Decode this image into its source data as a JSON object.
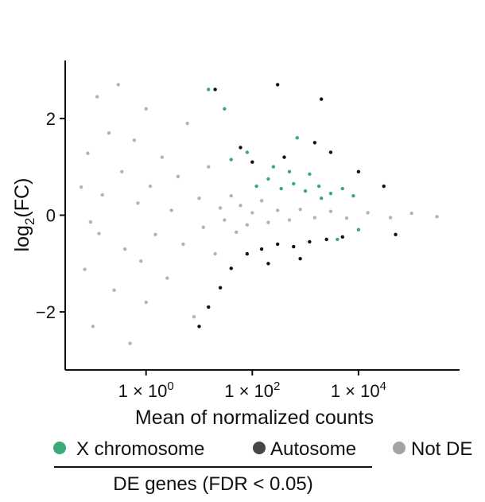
{
  "chart_data": {
    "type": "scatter",
    "subtype": "MA plot",
    "xlabel": "Mean of normalized counts",
    "ylabel": {
      "prefix": "log",
      "subscript": "2",
      "suffix": "(FC)"
    },
    "x_scale": "log10",
    "xlim": [
      0.03,
      800000
    ],
    "ylim": [
      -3.2,
      3.2
    ],
    "x_ticks": [
      {
        "value": 1,
        "label_base": "1 × 10",
        "label_exp": "0"
      },
      {
        "value": 100,
        "label_base": "1 × 10",
        "label_exp": "2"
      },
      {
        "value": 10000,
        "label_base": "1 × 10",
        "label_exp": "4"
      }
    ],
    "y_ticks": [
      {
        "value": 2,
        "label": "2"
      },
      {
        "value": 0,
        "label": "0"
      },
      {
        "value": -2,
        "label": "−2"
      }
    ],
    "clip_value": 3,
    "grid": false,
    "legend_position": "bottom",
    "legend": [
      {
        "label": "X chromosome",
        "color": "#3aaa78"
      },
      {
        "label": "Autosome",
        "color": "#474747"
      },
      {
        "label": "Not DE",
        "color": "#a3a3a3"
      }
    ],
    "legend_caption": "DE genes (FDR < 0.05)",
    "series": [
      {
        "name": "Not DE",
        "color": "#b3b3b3",
        "points": [
          [
            0.06,
            0.58
          ],
          [
            0.08,
            1.28
          ],
          [
            0.09,
            -0.14
          ],
          [
            0.07,
            -1.12
          ],
          [
            0.1,
            -2.3
          ],
          [
            0.12,
            2.45
          ],
          [
            0.13,
            -0.38
          ],
          [
            0.15,
            0.42
          ],
          [
            0.2,
            1.7
          ],
          [
            0.25,
            -1.55
          ],
          [
            0.3,
            2.7
          ],
          [
            0.35,
            0.9
          ],
          [
            0.4,
            -0.7
          ],
          [
            0.5,
            -2.65
          ],
          [
            0.6,
            1.55
          ],
          [
            0.7,
            0.25
          ],
          [
            0.8,
            -0.95
          ],
          [
            1,
            2.2
          ],
          [
            1,
            -1.8
          ],
          [
            1.2,
            0.6
          ],
          [
            1.5,
            -0.4
          ],
          [
            2,
            1.2
          ],
          [
            2.5,
            -1.3
          ],
          [
            3,
            0.1
          ],
          [
            4,
            0.8
          ],
          [
            5,
            -0.6
          ],
          [
            6,
            1.9
          ],
          [
            8,
            -2.1
          ],
          [
            10,
            0.35
          ],
          [
            12,
            -0.25
          ],
          [
            15,
            1.0
          ],
          [
            20,
            -0.8
          ],
          [
            25,
            0.15
          ],
          [
            30,
            -0.1
          ],
          [
            40,
            0.4
          ],
          [
            50,
            -0.35
          ],
          [
            60,
            0.2
          ],
          [
            80,
            -0.2
          ],
          [
            100,
            0.05
          ],
          [
            150,
            0.3
          ],
          [
            200,
            -0.15
          ],
          [
            300,
            0.1
          ],
          [
            500,
            -0.1
          ],
          [
            800,
            0.12
          ],
          [
            1500,
            -0.05
          ],
          [
            3000,
            0.08
          ],
          [
            6000,
            -0.06
          ],
          [
            15000,
            0.05
          ],
          [
            40000,
            -0.05
          ],
          [
            100000,
            0.04
          ],
          [
            300000,
            -0.03
          ]
        ]
      },
      {
        "name": "X chromosome",
        "color": "#3aaa78",
        "points": [
          [
            120,
            0.6
          ],
          [
            200,
            0.75
          ],
          [
            350,
            0.55
          ],
          [
            600,
            0.65
          ],
          [
            1000,
            0.5
          ],
          [
            1800,
            0.6
          ],
          [
            3000,
            0.45
          ],
          [
            5000,
            0.55
          ],
          [
            8000,
            0.4
          ],
          [
            250,
            1.0
          ],
          [
            500,
            0.9
          ],
          [
            1200,
            0.85
          ],
          [
            40,
            1.15
          ],
          [
            80,
            1.3
          ],
          [
            2000,
            0.35
          ],
          [
            30,
            2.2
          ],
          [
            15,
            2.6
          ],
          [
            700,
            1.6
          ],
          [
            4000,
            -0.5
          ],
          [
            10000,
            -0.3
          ]
        ]
      },
      {
        "name": "Autosome",
        "color": "#111111",
        "points": [
          [
            80,
            -0.8
          ],
          [
            150,
            -0.7
          ],
          [
            300,
            -0.6
          ],
          [
            600,
            -0.65
          ],
          [
            1200,
            -0.55
          ],
          [
            2500,
            -0.5
          ],
          [
            5000,
            -0.45
          ],
          [
            40,
            -1.1
          ],
          [
            25,
            -1.5
          ],
          [
            15,
            -1.9
          ],
          [
            10,
            -2.3
          ],
          [
            200,
            -1.0
          ],
          [
            800,
            -0.9
          ],
          [
            60,
            1.4
          ],
          [
            100,
            1.1
          ],
          [
            400,
            1.2
          ],
          [
            1500,
            1.5
          ],
          [
            3000,
            1.3
          ],
          [
            10000,
            0.9
          ],
          [
            30000,
            0.6
          ],
          [
            50000,
            -0.4
          ],
          [
            20,
            2.6
          ],
          [
            300,
            2.7
          ],
          [
            2000,
            2.4
          ]
        ]
      }
    ]
  }
}
